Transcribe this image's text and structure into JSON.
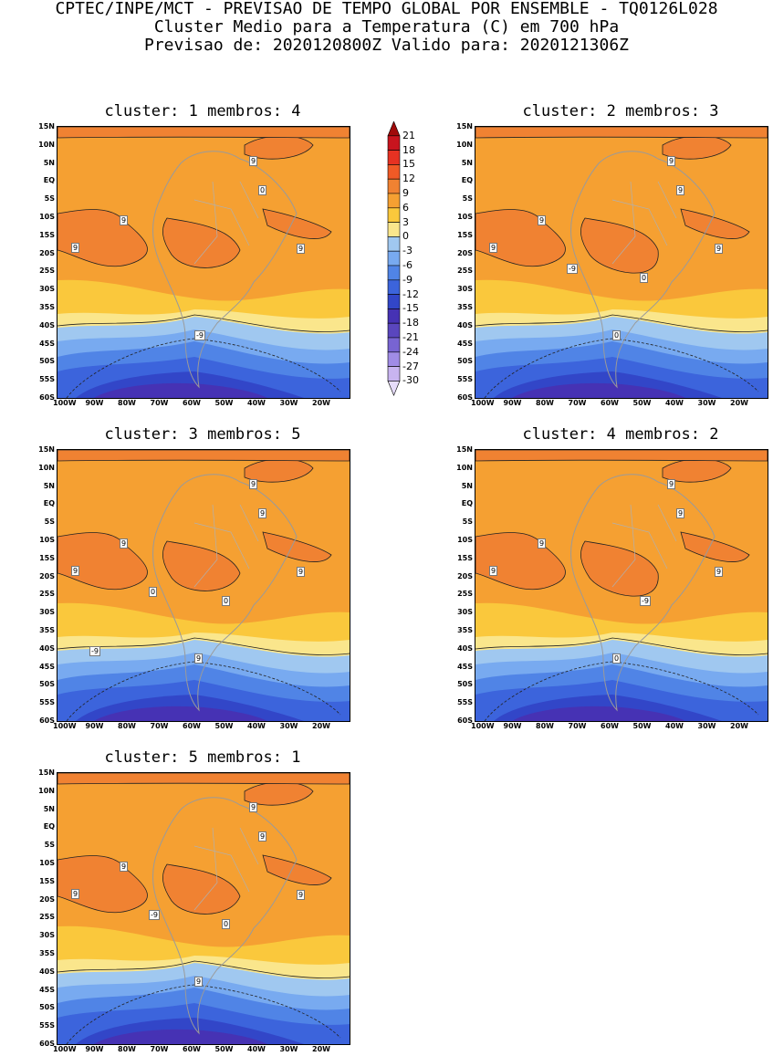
{
  "header": {
    "line1": "CPTEC/INPE/MCT - PREVISAO DE TEMPO GLOBAL POR ENSEMBLE - TQ0126L028",
    "line2": "Cluster Medio para a Temperatura (C) em 700 hPa",
    "line3": "Previsao de: 2020120800Z   Valido para: 2020121306Z"
  },
  "lat_ticks": [
    "15N",
    "10N",
    "5N",
    "EQ",
    "5S",
    "10S",
    "15S",
    "20S",
    "25S",
    "30S",
    "35S",
    "40S",
    "45S",
    "50S",
    "55S",
    "60S"
  ],
  "lon_ticks": [
    "100W",
    "90W",
    "80W",
    "70W",
    "60W",
    "50W",
    "40W",
    "30W",
    "20W"
  ],
  "colorbar": {
    "labels": [
      "21",
      "18",
      "15",
      "12",
      "9",
      "6",
      "3",
      "0",
      "-3",
      "-6",
      "-9",
      "-12",
      "-15",
      "-18",
      "-21",
      "-24",
      "-27",
      "-30"
    ],
    "colors": [
      "#a00a0a",
      "#c8141e",
      "#e63222",
      "#f05a26",
      "#f08232",
      "#f5a032",
      "#fac83c",
      "#fae68c",
      "#a0c8f0",
      "#78aaf0",
      "#5084e6",
      "#3c64dc",
      "#3246c8",
      "#4632b4",
      "#5a46be",
      "#7864d2",
      "#a08ce6",
      "#c8b4f0",
      "#e6dcfa"
    ]
  },
  "panels": [
    {
      "title": "cluster: 1   membros: 4",
      "contour_labels": [
        "9",
        "9",
        "9",
        "9",
        "0",
        "-9"
      ]
    },
    {
      "title": "cluster: 2   membros: 3",
      "contour_labels": [
        "9",
        "9",
        "9",
        "9",
        "9",
        "0",
        "0",
        "-9"
      ]
    },
    {
      "title": "cluster: 3   membros: 5",
      "contour_labels": [
        "9",
        "9",
        "9",
        "9",
        "9",
        "9",
        "0",
        "0",
        "-9"
      ]
    },
    {
      "title": "cluster: 4   membros: 2",
      "contour_labels": [
        "9",
        "9",
        "9",
        "9",
        "9",
        "0",
        "-9"
      ]
    },
    {
      "title": "cluster: 5   membros: 1",
      "contour_labels": [
        "9",
        "9",
        "9",
        "9",
        "9",
        "9",
        "0",
        "-9"
      ]
    }
  ]
}
